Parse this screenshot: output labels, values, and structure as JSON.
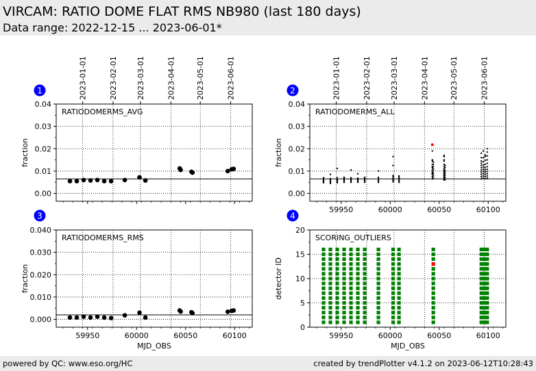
{
  "header": {
    "title": "VIRCAM: RATIO DOME FLAT RMS NB980 (last 180 days)",
    "subtitle": "Data range: 2022-12-15 ... 2023-06-01*"
  },
  "footer": {
    "left": "powered by QC: www.eso.org/HC",
    "right": "created by trendPlotter v4.1.2 on 2023-06-12T10:28:43"
  },
  "colors": {
    "marker": "#000000",
    "outlier": "#ff0000",
    "scoring_ok": "#008000",
    "badge": "#0000ff"
  },
  "date_axis": {
    "labels": [
      "2023-01-01",
      "2023-02-01",
      "2023-03-01",
      "2023-04-01",
      "2023-05-01",
      "2023-06-01"
    ],
    "mjd": [
      59945,
      59976,
      60004,
      60035,
      60065,
      60096
    ]
  },
  "chart_data": [
    {
      "panel": "1",
      "type": "scatter",
      "label": "RATIODOMERMS_AVG",
      "xlabel": "",
      "ylabel": "fraction",
      "xlim": [
        59918,
        60118
      ],
      "ylim": [
        -0.0035,
        0.04
      ],
      "xticks": [
        59950,
        60000,
        60050,
        60100
      ],
      "xtick_labels": false,
      "yticks": [
        0.0,
        0.01,
        0.02,
        0.03,
        0.04
      ],
      "ytick_labels": [
        "0.00",
        "0.01",
        "0.02",
        "0.03",
        "0.04"
      ],
      "reference_line": 0.0065,
      "date_lines": true,
      "x": [
        59932,
        59939,
        59946,
        59953,
        59960,
        59967,
        59974,
        59988,
        60003,
        60009,
        60044,
        60045,
        60056,
        60057,
        60093,
        60097,
        60099
      ],
      "y": [
        0.0055,
        0.0055,
        0.006,
        0.0058,
        0.006,
        0.0055,
        0.0055,
        0.006,
        0.0072,
        0.0058,
        0.0112,
        0.0105,
        0.0097,
        0.0093,
        0.01,
        0.0108,
        0.011
      ]
    },
    {
      "panel": "2",
      "type": "scatter",
      "label": "RATIODOMERMS_ALL",
      "xlabel": "",
      "ylabel": "fraction",
      "xlim": [
        59918,
        60118
      ],
      "ylim": [
        -0.0035,
        0.04
      ],
      "xticks": [
        59950,
        60000,
        60050,
        60100
      ],
      "xtick_labels": true,
      "yticks": [
        0.0,
        0.01,
        0.02,
        0.03,
        0.04
      ],
      "ytick_labels": [
        "0.00",
        "0.01",
        "0.02",
        "0.03",
        "0.04"
      ],
      "reference_line": 0.0065,
      "date_lines": true,
      "groups": [
        {
          "x": 59932,
          "ys": [
            0.0048,
            0.0052,
            0.0056,
            0.006,
            0.0065,
            0.007
          ]
        },
        {
          "x": 59939,
          "ys": [
            0.0045,
            0.005,
            0.0055,
            0.006,
            0.0066,
            0.0085
          ]
        },
        {
          "x": 59946,
          "ys": [
            0.0048,
            0.0053,
            0.0058,
            0.0063,
            0.007,
            0.0112
          ]
        },
        {
          "x": 59953,
          "ys": [
            0.005,
            0.0054,
            0.0058,
            0.0063,
            0.0068,
            0.0072
          ]
        },
        {
          "x": 59960,
          "ys": [
            0.005,
            0.0055,
            0.006,
            0.0065,
            0.007,
            0.0105
          ]
        },
        {
          "x": 59967,
          "ys": [
            0.005,
            0.0054,
            0.0058,
            0.0063,
            0.0068,
            0.0088
          ]
        },
        {
          "x": 59974,
          "ys": [
            0.005,
            0.0054,
            0.0058,
            0.0063,
            0.0068,
            0.0072
          ]
        },
        {
          "x": 59988,
          "ys": [
            0.005,
            0.0055,
            0.006,
            0.0065,
            0.0072,
            0.01
          ]
        },
        {
          "x": 60003,
          "ys": [
            0.0052,
            0.0058,
            0.0063,
            0.0068,
            0.0075,
            0.008,
            0.0125,
            0.0165
          ]
        },
        {
          "x": 60009,
          "ys": [
            0.005,
            0.0055,
            0.006,
            0.0066,
            0.0072,
            0.0078
          ]
        },
        {
          "x": 60043,
          "ys": [
            0.0065,
            0.0075,
            0.0085,
            0.009,
            0.0095,
            0.0105,
            0.0115,
            0.012,
            0.013,
            0.0145,
            0.015,
            0.019
          ]
        },
        {
          "x": 60044,
          "ys": [
            0.007,
            0.008,
            0.009,
            0.01,
            0.011,
            0.012,
            0.013,
            0.014
          ]
        },
        {
          "x": 60055,
          "ys": [
            0.006,
            0.0065,
            0.007,
            0.0075,
            0.008,
            0.0085,
            0.009,
            0.0095,
            0.01,
            0.0105,
            0.011,
            0.012,
            0.013,
            0.0145,
            0.015,
            0.0165,
            0.017
          ]
        },
        {
          "x": 60056,
          "ys": [
            0.0062,
            0.0072,
            0.0082,
            0.0092,
            0.0102,
            0.0115,
            0.0125
          ]
        },
        {
          "x": 60093,
          "ys": [
            0.0065,
            0.0075,
            0.0085,
            0.0095,
            0.0105,
            0.0115,
            0.0125,
            0.0135,
            0.0145,
            0.016,
            0.018
          ]
        },
        {
          "x": 60095,
          "ys": [
            0.0068,
            0.0078,
            0.0088,
            0.0098,
            0.0108,
            0.0118,
            0.0128,
            0.0142,
            0.016,
            0.019
          ]
        },
        {
          "x": 60097,
          "ys": [
            0.0066,
            0.0076,
            0.0086,
            0.0096,
            0.0106,
            0.0116,
            0.013,
            0.0148,
            0.0165,
            0.0172
          ]
        },
        {
          "x": 60099,
          "ys": [
            0.0068,
            0.0078,
            0.0088,
            0.0098,
            0.0108,
            0.012,
            0.0135,
            0.015,
            0.0168,
            0.0185,
            0.02
          ]
        }
      ],
      "outliers": [
        {
          "x": 60043,
          "y": 0.0218
        }
      ]
    },
    {
      "panel": "3",
      "type": "scatter",
      "label": "RATIODOMERMS_RMS",
      "xlabel": "MJD_OBS",
      "ylabel": "fraction",
      "xlim": [
        59918,
        60118
      ],
      "ylim": [
        -0.0035,
        0.04
      ],
      "xticks": [
        59950,
        60000,
        60050,
        60100
      ],
      "xtick_labels": true,
      "yticks": [
        0.0,
        0.01,
        0.02,
        0.03,
        0.04
      ],
      "ytick_labels": [
        "0.000",
        "0.010",
        "0.020",
        "0.030",
        "0.040"
      ],
      "reference_line": 0.002,
      "date_lines": true,
      "x": [
        59932,
        59939,
        59946,
        59953,
        59960,
        59967,
        59974,
        59988,
        60003,
        60009,
        60044,
        60045,
        60056,
        60057,
        60093,
        60097,
        60099
      ],
      "y": [
        0.0008,
        0.0008,
        0.0012,
        0.0008,
        0.0012,
        0.0008,
        0.0006,
        0.0018,
        0.003,
        0.0008,
        0.004,
        0.0035,
        0.0032,
        0.0028,
        0.0034,
        0.0038,
        0.004
      ]
    },
    {
      "panel": "4",
      "type": "scatter",
      "label": "SCORING_OUTLIERS",
      "xlabel": "MJD_OBS",
      "ylabel": "detector ID",
      "xlim": [
        59918,
        60118
      ],
      "ylim": [
        0,
        20
      ],
      "xticks": [
        59950,
        60000,
        60050,
        60100
      ],
      "xtick_labels": true,
      "yticks": [
        0,
        5,
        10,
        15,
        20
      ],
      "ytick_labels": [
        "0",
        "5",
        "10",
        "15",
        "20"
      ],
      "date_lines": true,
      "detectors": [
        1,
        2,
        3,
        4,
        5,
        6,
        7,
        8,
        9,
        10,
        11,
        12,
        13,
        14,
        15,
        16
      ],
      "dates": [
        59932,
        59939,
        59946,
        59953,
        59960,
        59967,
        59974,
        59988,
        60003,
        60009,
        60044,
        60093,
        60095,
        60097,
        60099
      ],
      "outliers": [
        {
          "x": 60044,
          "y": 13
        }
      ]
    }
  ]
}
